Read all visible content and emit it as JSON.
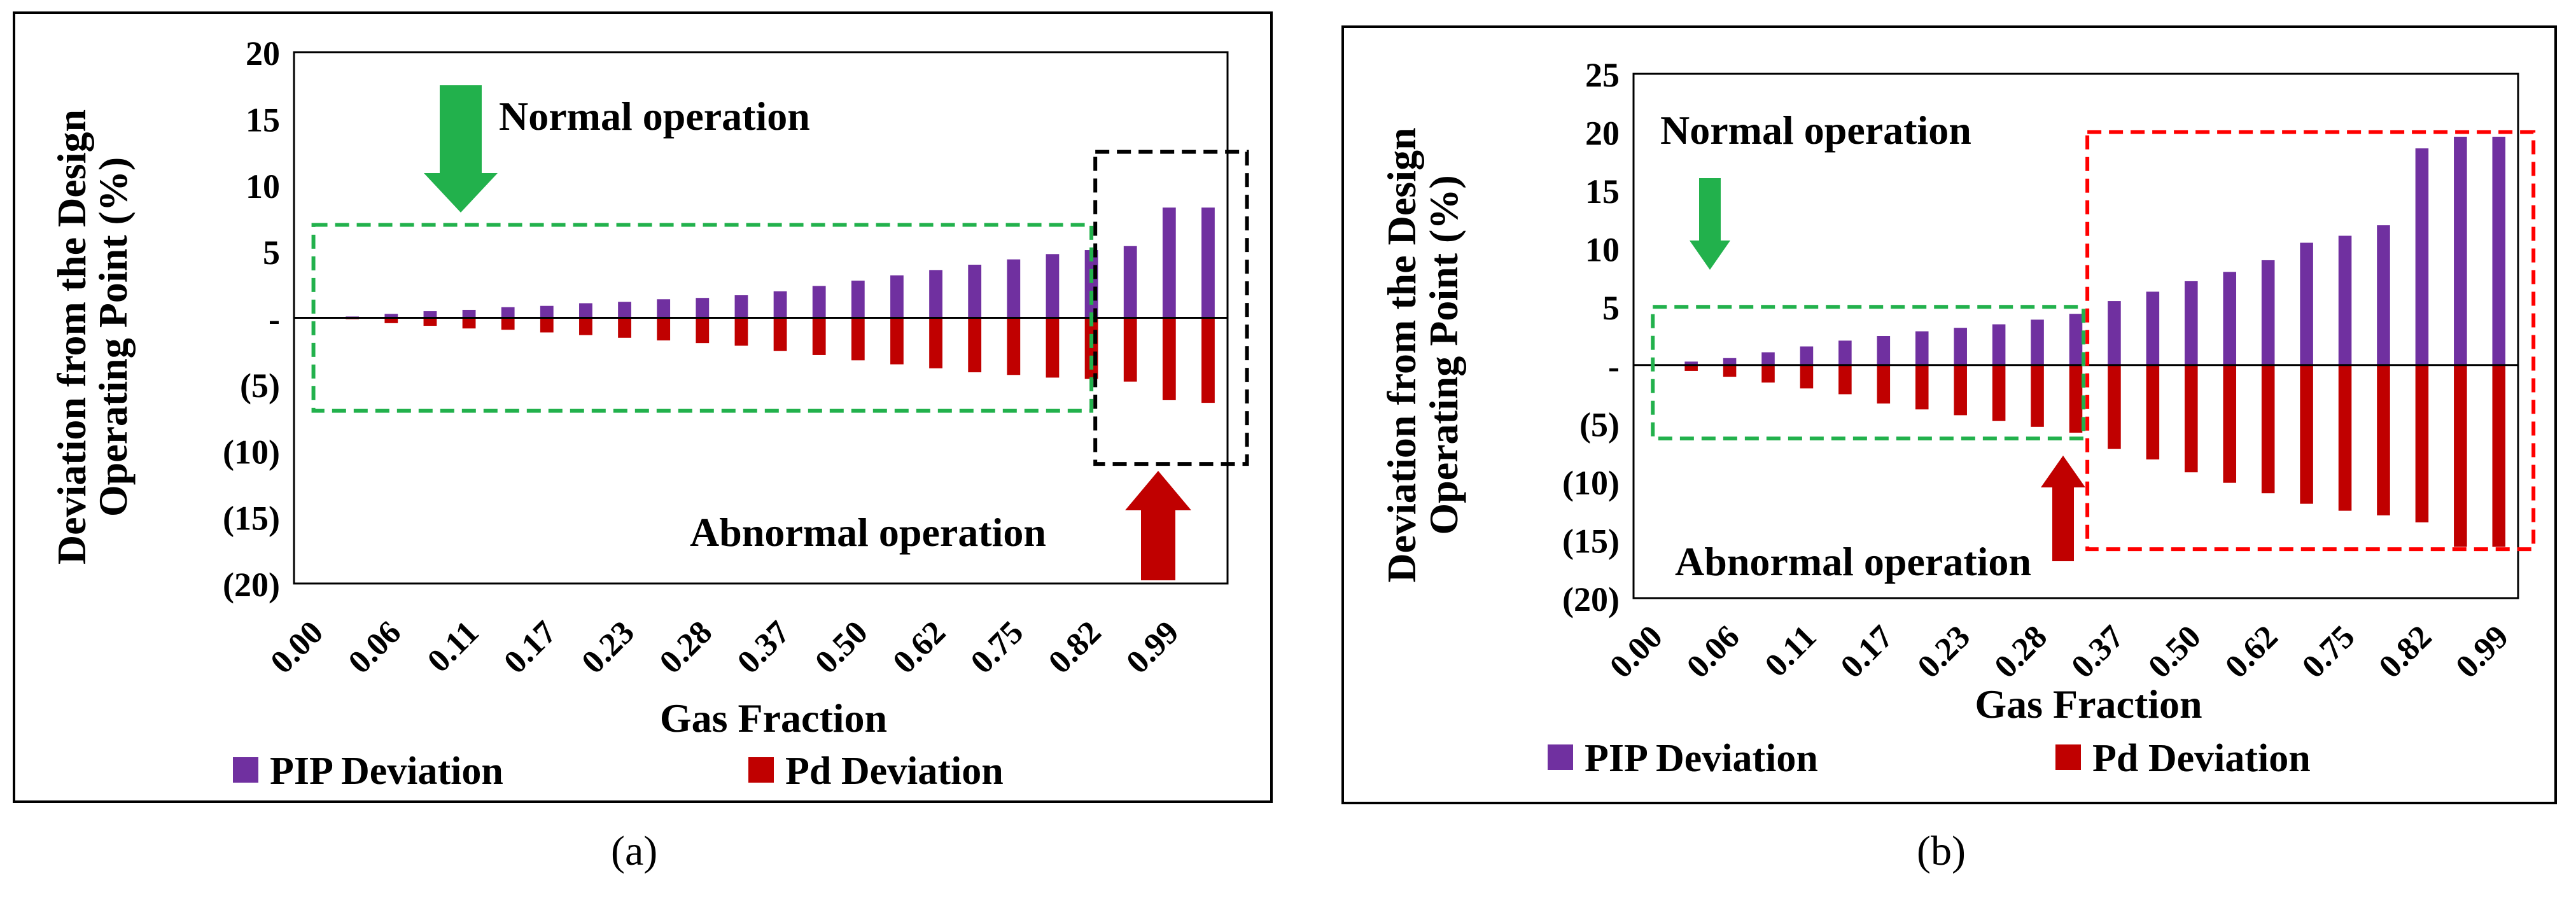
{
  "charts": [
    {
      "caption": "(a)",
      "annotations": {
        "normal": "Normal operation",
        "abnormal": "Abnormal operation"
      }
    },
    {
      "caption": "(b)",
      "annotations": {
        "normal": "Normal operation",
        "abnormal": "Abnormal operation"
      }
    }
  ],
  "colors": {
    "pip": "#7030a0",
    "pd": "#c00000",
    "normal_box": "#22b14c",
    "abnormal_box_a": "#000000",
    "abnormal_box_b": "#ff0000",
    "arrow_down": "#22b14c",
    "arrow_up": "#c00000"
  },
  "chart_data": [
    {
      "type": "bar",
      "xlabel": "Gas Fraction",
      "ylabel": [
        "Deviation  from the Design",
        "Operating Point (%)"
      ],
      "ylim": [
        -20,
        20
      ],
      "yticks": [
        20,
        15,
        10,
        5,
        0,
        -5,
        -10,
        -15,
        -20
      ],
      "ytick_labels": [
        "20",
        "15",
        "10",
        "5",
        "-",
        "(5)",
        "(10)",
        "(15)",
        "(20)"
      ],
      "xtick_labels": [
        "0.00",
        "0.06",
        "0.11",
        "0.17",
        "0.23",
        "0.28",
        "0.37",
        "0.50",
        "0.62",
        "0.75",
        "0.82",
        "0.99"
      ],
      "legend_position": "bottom",
      "series": [
        {
          "name": "PIP Deviation",
          "values": [
            0,
            0.1,
            0.3,
            0.5,
            0.6,
            0.8,
            0.9,
            1.1,
            1.2,
            1.4,
            1.5,
            1.7,
            2.0,
            2.4,
            2.8,
            3.2,
            3.6,
            4.0,
            4.4,
            4.8,
            5.1,
            5.4,
            8.3,
            8.3
          ]
        },
        {
          "name": "Pd Deviation",
          "values": [
            0,
            -0.1,
            -0.4,
            -0.6,
            -0.8,
            -0.9,
            -1.1,
            -1.3,
            -1.5,
            -1.7,
            -1.9,
            -2.1,
            -2.5,
            -2.8,
            -3.2,
            -3.5,
            -3.8,
            -4.1,
            -4.3,
            -4.5,
            -4.6,
            -4.8,
            -6.2,
            -6.4
          ]
        }
      ]
    },
    {
      "type": "bar",
      "xlabel": "Gas Fraction",
      "ylabel": [
        "Deviation  from the Design",
        "Operating Point (%)"
      ],
      "ylim": [
        -20,
        25
      ],
      "yticks": [
        25,
        20,
        15,
        10,
        5,
        0,
        -5,
        -10,
        -15,
        -20
      ],
      "ytick_labels": [
        "25",
        "20",
        "15",
        "10",
        "5",
        "-",
        "(5)",
        "(10)",
        "(15)",
        "(20)"
      ],
      "xtick_labels": [
        "0.00",
        "0.06",
        "0.11",
        "0.17",
        "0.23",
        "0.28",
        "0.37",
        "0.50",
        "0.62",
        "0.75",
        "0.82",
        "0.99"
      ],
      "legend_position": "bottom",
      "series": [
        {
          "name": "PIP Deviation",
          "values": [
            0,
            0.3,
            0.6,
            1.1,
            1.6,
            2.1,
            2.5,
            2.9,
            3.2,
            3.5,
            3.9,
            4.4,
            5.5,
            6.3,
            7.2,
            8.0,
            9.0,
            10.5,
            11.1,
            12.0,
            18.6,
            19.6,
            19.6
          ]
        },
        {
          "name": "Pd Deviation",
          "values": [
            0,
            -0.5,
            -1.0,
            -1.5,
            -2.0,
            -2.5,
            -3.3,
            -3.8,
            -4.3,
            -4.8,
            -5.3,
            -5.8,
            -7.2,
            -8.1,
            -9.2,
            -10.1,
            -11.0,
            -11.9,
            -12.5,
            -12.9,
            -13.5,
            -15.6,
            -15.6
          ]
        }
      ]
    }
  ]
}
